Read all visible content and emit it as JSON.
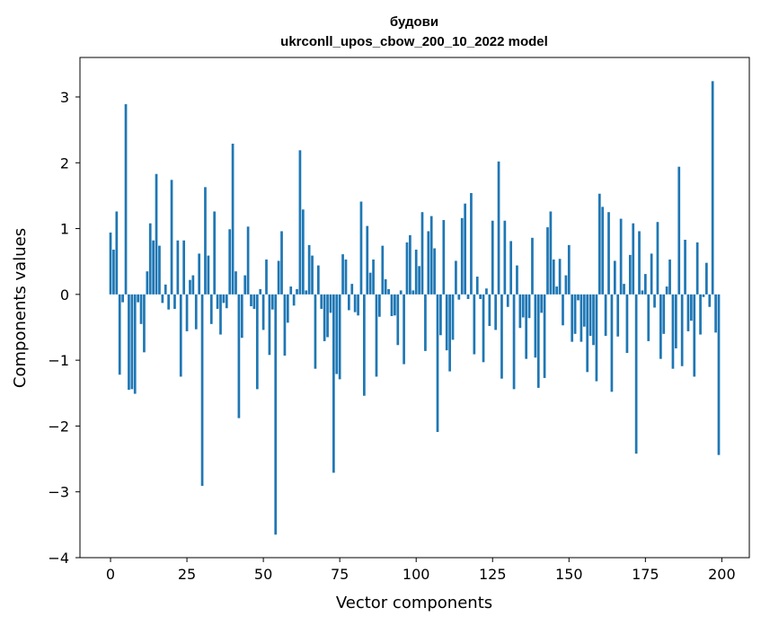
{
  "chart_data": {
    "type": "bar",
    "title": "будови",
    "subtitle": "ukrconll_upos_cbow_200_10_2022 model",
    "xlabel": "Vector components",
    "ylabel": "Components values",
    "xlim": [
      -10,
      209
    ],
    "ylim": [
      -4,
      3.6
    ],
    "xticks": [
      0,
      25,
      50,
      75,
      100,
      125,
      150,
      175,
      200
    ],
    "xtick_labels": [
      "0",
      "25",
      "50",
      "75",
      "100",
      "125",
      "150",
      "175",
      "200"
    ],
    "yticks": [
      -4,
      -3,
      -2,
      -1,
      0,
      1,
      2,
      3
    ],
    "ytick_labels": [
      "−4",
      "−3",
      "−2",
      "−1",
      "0",
      "1",
      "2",
      "3"
    ],
    "grid": false,
    "bar_color": "#1f77b4",
    "x": [
      0,
      1,
      2,
      3,
      4,
      5,
      6,
      7,
      8,
      9,
      10,
      11,
      12,
      13,
      14,
      15,
      16,
      17,
      18,
      19,
      20,
      21,
      22,
      23,
      24,
      25,
      26,
      27,
      28,
      29,
      30,
      31,
      32,
      33,
      34,
      35,
      36,
      37,
      38,
      39,
      40,
      41,
      42,
      43,
      44,
      45,
      46,
      47,
      48,
      49,
      50,
      51,
      52,
      53,
      54,
      55,
      56,
      57,
      58,
      59,
      60,
      61,
      62,
      63,
      64,
      65,
      66,
      67,
      68,
      69,
      70,
      71,
      72,
      73,
      74,
      75,
      76,
      77,
      78,
      79,
      80,
      81,
      82,
      83,
      84,
      85,
      86,
      87,
      88,
      89,
      90,
      91,
      92,
      93,
      94,
      95,
      96,
      97,
      98,
      99,
      100,
      101,
      102,
      103,
      104,
      105,
      106,
      107,
      108,
      109,
      110,
      111,
      112,
      113,
      114,
      115,
      116,
      117,
      118,
      119,
      120,
      121,
      122,
      123,
      124,
      125,
      126,
      127,
      128,
      129,
      130,
      131,
      132,
      133,
      134,
      135,
      136,
      137,
      138,
      139,
      140,
      141,
      142,
      143,
      144,
      145,
      146,
      147,
      148,
      149,
      150,
      151,
      152,
      153,
      154,
      155,
      156,
      157,
      158,
      159,
      160,
      161,
      162,
      163,
      164,
      165,
      166,
      167,
      168,
      169,
      170,
      171,
      172,
      173,
      174,
      175,
      176,
      177,
      178,
      179,
      180,
      181,
      182,
      183,
      184,
      185,
      186,
      187,
      188,
      189,
      190,
      191,
      192,
      193,
      194,
      195,
      196,
      197,
      198,
      199
    ],
    "values": [
      0.94,
      0.68,
      1.26,
      -1.22,
      -0.12,
      2.89,
      -1.45,
      -1.44,
      -1.51,
      -0.12,
      -0.45,
      -0.88,
      0.35,
      1.08,
      0.82,
      1.83,
      0.74,
      -0.13,
      0.15,
      -0.23,
      1.74,
      -0.22,
      0.82,
      -1.25,
      0.82,
      -0.56,
      0.22,
      0.29,
      -0.53,
      0.62,
      -2.91,
      1.63,
      0.59,
      -0.45,
      1.26,
      -0.22,
      -0.61,
      -0.13,
      -0.21,
      0.99,
      2.29,
      0.35,
      -1.88,
      -0.66,
      0.29,
      1.03,
      -0.18,
      -0.22,
      -1.44,
      0.08,
      -0.54,
      0.53,
      -0.92,
      -0.23,
      -3.65,
      0.51,
      0.96,
      -0.93,
      -0.43,
      0.12,
      -0.17,
      0.08,
      2.19,
      1.29,
      0.06,
      0.75,
      0.59,
      -1.13,
      0.44,
      -0.22,
      -0.71,
      -0.65,
      -0.28,
      -2.71,
      -1.21,
      -1.29,
      0.61,
      0.53,
      -0.24,
      0.16,
      -0.27,
      -0.32,
      1.41,
      -1.54,
      1.04,
      0.33,
      0.53,
      -1.25,
      -0.34,
      0.74,
      0.23,
      0.08,
      -0.33,
      -0.32,
      -0.77,
      0.06,
      -1.06,
      0.79,
      0.9,
      0.06,
      0.68,
      0.43,
      1.25,
      -0.86,
      0.96,
      1.19,
      0.7,
      -2.09,
      -0.62,
      1.13,
      -0.85,
      -1.17,
      -0.69,
      0.51,
      -0.08,
      1.16,
      1.38,
      -0.07,
      1.54,
      -0.91,
      0.27,
      -0.07,
      -1.03,
      0.09,
      -0.48,
      1.12,
      -0.54,
      2.02,
      -1.28,
      1.12,
      -0.19,
      0.81,
      -1.44,
      0.44,
      -0.51,
      -0.35,
      -0.98,
      -0.36,
      0.86,
      -0.96,
      -1.42,
      -0.28,
      -1.27,
      1.02,
      1.26,
      0.53,
      0.12,
      0.54,
      -0.47,
      0.29,
      0.75,
      -0.72,
      -0.6,
      -0.09,
      -0.72,
      -0.49,
      -1.18,
      -0.63,
      -0.77,
      -1.32,
      1.53,
      1.33,
      -0.63,
      1.25,
      -1.48,
      0.51,
      -0.64,
      1.15,
      0.16,
      -0.89,
      0.6,
      1.08,
      -2.42,
      0.96,
      0.06,
      0.31,
      -0.71,
      0.62,
      -0.2,
      1.1,
      -0.98,
      -0.6,
      0.12,
      0.53,
      -1.13,
      -0.82,
      1.94,
      -1.09,
      0.83,
      -0.56,
      -0.4,
      -1.25,
      0.79,
      -0.61,
      -0.04,
      0.48,
      -0.19,
      3.24,
      -0.58,
      -2.44
    ]
  }
}
